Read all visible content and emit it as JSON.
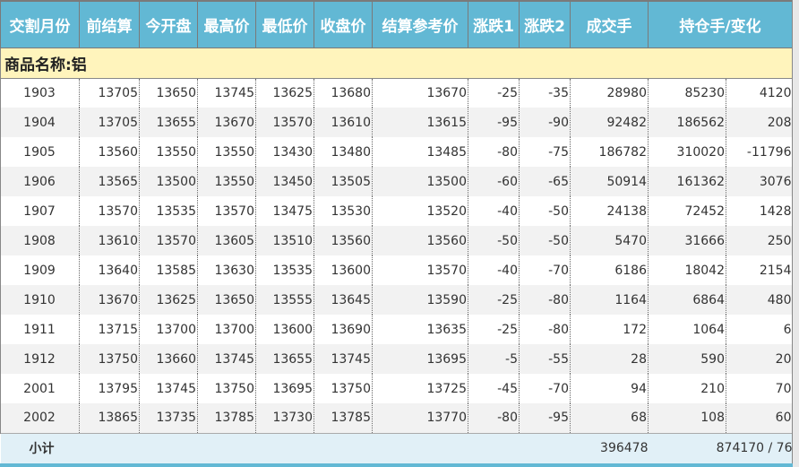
{
  "headers": [
    "交割月份",
    "前结算",
    "今开盘",
    "最高价",
    "最低价",
    "收盘价",
    "结算参考价",
    "涨跌1",
    "涨跌2",
    "成交手",
    "持仓手/变化"
  ],
  "product_title": "商品名称:铝",
  "rows": [
    [
      "1903",
      "13705",
      "13650",
      "13745",
      "13625",
      "13680",
      "13670",
      "-25",
      "-35",
      "28980",
      "85230",
      "4120"
    ],
    [
      "1904",
      "13705",
      "13655",
      "13670",
      "13570",
      "13610",
      "13615",
      "-95",
      "-90",
      "92482",
      "186562",
      "208"
    ],
    [
      "1905",
      "13560",
      "13550",
      "13550",
      "13430",
      "13480",
      "13485",
      "-80",
      "-75",
      "186782",
      "310020",
      "-11796"
    ],
    [
      "1906",
      "13565",
      "13500",
      "13550",
      "13450",
      "13505",
      "13500",
      "-60",
      "-65",
      "50914",
      "161362",
      "3076"
    ],
    [
      "1907",
      "13570",
      "13535",
      "13570",
      "13475",
      "13530",
      "13520",
      "-40",
      "-50",
      "24138",
      "72452",
      "1428"
    ],
    [
      "1908",
      "13610",
      "13570",
      "13605",
      "13510",
      "13560",
      "13560",
      "-50",
      "-50",
      "5470",
      "31666",
      "250"
    ],
    [
      "1909",
      "13640",
      "13585",
      "13630",
      "13535",
      "13600",
      "13570",
      "-40",
      "-70",
      "6186",
      "18042",
      "2154"
    ],
    [
      "1910",
      "13670",
      "13625",
      "13650",
      "13555",
      "13645",
      "13590",
      "-25",
      "-80",
      "1164",
      "6864",
      "480"
    ],
    [
      "1911",
      "13715",
      "13700",
      "13700",
      "13600",
      "13690",
      "13635",
      "-25",
      "-80",
      "172",
      "1064",
      "6"
    ],
    [
      "1912",
      "13750",
      "13660",
      "13745",
      "13655",
      "13745",
      "13695",
      "-5",
      "-55",
      "28",
      "590",
      "20"
    ],
    [
      "2001",
      "13795",
      "13745",
      "13750",
      "13695",
      "13750",
      "13725",
      "-45",
      "-70",
      "94",
      "210",
      "70"
    ],
    [
      "2002",
      "13865",
      "13735",
      "13785",
      "13730",
      "13785",
      "13770",
      "-80",
      "-95",
      "68",
      "108",
      "60"
    ]
  ],
  "subtotal": {
    "label": "小计",
    "volume": "396478",
    "open_interest": "874170 / 76"
  }
}
